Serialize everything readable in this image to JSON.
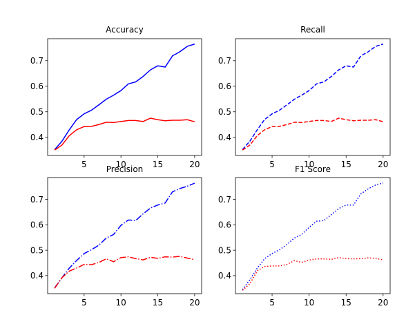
{
  "chart_data": [
    {
      "type": "line",
      "title": "Accuracy",
      "x": [
        1,
        2,
        3,
        4,
        5,
        6,
        7,
        8,
        9,
        10,
        11,
        12,
        13,
        14,
        15,
        16,
        17,
        18,
        19,
        20
      ],
      "xticks": [
        5,
        10,
        15,
        20
      ],
      "yticks": [
        0.4,
        0.5,
        0.6,
        0.7
      ],
      "xlim": [
        0.05,
        20.95
      ],
      "ylim": [
        0.329,
        0.786
      ],
      "grid": false,
      "series": [
        {
          "color": "#0000ff",
          "linestyle": "solid",
          "values": [
            0.352,
            0.385,
            0.43,
            0.47,
            0.492,
            0.506,
            0.527,
            0.549,
            0.565,
            0.583,
            0.609,
            0.617,
            0.638,
            0.664,
            0.68,
            0.675,
            0.719,
            0.735,
            0.756,
            0.765
          ]
        },
        {
          "color": "#ff0000",
          "linestyle": "solid",
          "values": [
            0.35,
            0.37,
            0.407,
            0.43,
            0.442,
            0.443,
            0.45,
            0.459,
            0.458,
            0.462,
            0.466,
            0.466,
            0.462,
            0.475,
            0.469,
            0.465,
            0.467,
            0.467,
            0.469,
            0.461
          ]
        }
      ]
    },
    {
      "type": "line",
      "title": "Recall",
      "x": [
        1,
        2,
        3,
        4,
        5,
        6,
        7,
        8,
        9,
        10,
        11,
        12,
        13,
        14,
        15,
        16,
        17,
        18,
        19,
        20
      ],
      "xticks": [
        5,
        10,
        15,
        20
      ],
      "yticks": [
        0.4,
        0.5,
        0.6,
        0.7
      ],
      "xlim": [
        0.05,
        20.95
      ],
      "ylim": [
        0.329,
        0.786
      ],
      "grid": false,
      "series": [
        {
          "color": "#0000ff",
          "linestyle": "dashed",
          "values": [
            0.352,
            0.385,
            0.43,
            0.47,
            0.492,
            0.506,
            0.527,
            0.549,
            0.565,
            0.583,
            0.609,
            0.617,
            0.638,
            0.664,
            0.68,
            0.675,
            0.719,
            0.735,
            0.756,
            0.765
          ]
        },
        {
          "color": "#ff0000",
          "linestyle": "dashed",
          "values": [
            0.35,
            0.37,
            0.407,
            0.43,
            0.442,
            0.443,
            0.45,
            0.459,
            0.458,
            0.462,
            0.466,
            0.466,
            0.462,
            0.475,
            0.469,
            0.465,
            0.467,
            0.467,
            0.469,
            0.461
          ]
        }
      ]
    },
    {
      "type": "line",
      "title": "Precision",
      "x": [
        1,
        2,
        3,
        4,
        5,
        6,
        7,
        8,
        9,
        10,
        11,
        12,
        13,
        14,
        15,
        16,
        17,
        18,
        19,
        20
      ],
      "xticks": [
        5,
        10,
        15,
        20
      ],
      "yticks": [
        0.4,
        0.5,
        0.6,
        0.7
      ],
      "xlim": [
        0.05,
        20.95
      ],
      "ylim": [
        0.329,
        0.786
      ],
      "grid": false,
      "series": [
        {
          "color": "#0000ff",
          "linestyle": "dashdot",
          "values": [
            0.352,
            0.392,
            0.43,
            0.46,
            0.487,
            0.502,
            0.52,
            0.548,
            0.562,
            0.598,
            0.619,
            0.617,
            0.643,
            0.666,
            0.678,
            0.686,
            0.73,
            0.743,
            0.752,
            0.764
          ]
        },
        {
          "color": "#ff0000",
          "linestyle": "dashdot",
          "values": [
            0.35,
            0.392,
            0.418,
            0.43,
            0.444,
            0.443,
            0.452,
            0.466,
            0.455,
            0.471,
            0.474,
            0.467,
            0.462,
            0.472,
            0.468,
            0.474,
            0.473,
            0.476,
            0.469,
            0.463
          ]
        }
      ]
    },
    {
      "type": "line",
      "title": "F1 Score",
      "x": [
        1,
        2,
        3,
        4,
        5,
        6,
        7,
        8,
        9,
        10,
        11,
        12,
        13,
        14,
        15,
        16,
        17,
        18,
        19,
        20
      ],
      "xticks": [
        5,
        10,
        15,
        20
      ],
      "yticks": [
        0.4,
        0.5,
        0.6,
        0.7
      ],
      "xlim": [
        0.05,
        20.95
      ],
      "ylim": [
        0.329,
        0.786
      ],
      "grid": false,
      "series": [
        {
          "color": "#0000ff",
          "linestyle": "dotted",
          "values": [
            0.345,
            0.384,
            0.43,
            0.467,
            0.487,
            0.502,
            0.522,
            0.548,
            0.562,
            0.59,
            0.614,
            0.617,
            0.64,
            0.664,
            0.678,
            0.678,
            0.722,
            0.742,
            0.757,
            0.765
          ]
        },
        {
          "color": "#ff0000",
          "linestyle": "dotted",
          "values": [
            0.342,
            0.368,
            0.419,
            0.436,
            0.438,
            0.438,
            0.444,
            0.459,
            0.452,
            0.461,
            0.466,
            0.466,
            0.464,
            0.471,
            0.467,
            0.466,
            0.467,
            0.47,
            0.468,
            0.462
          ]
        }
      ]
    }
  ]
}
